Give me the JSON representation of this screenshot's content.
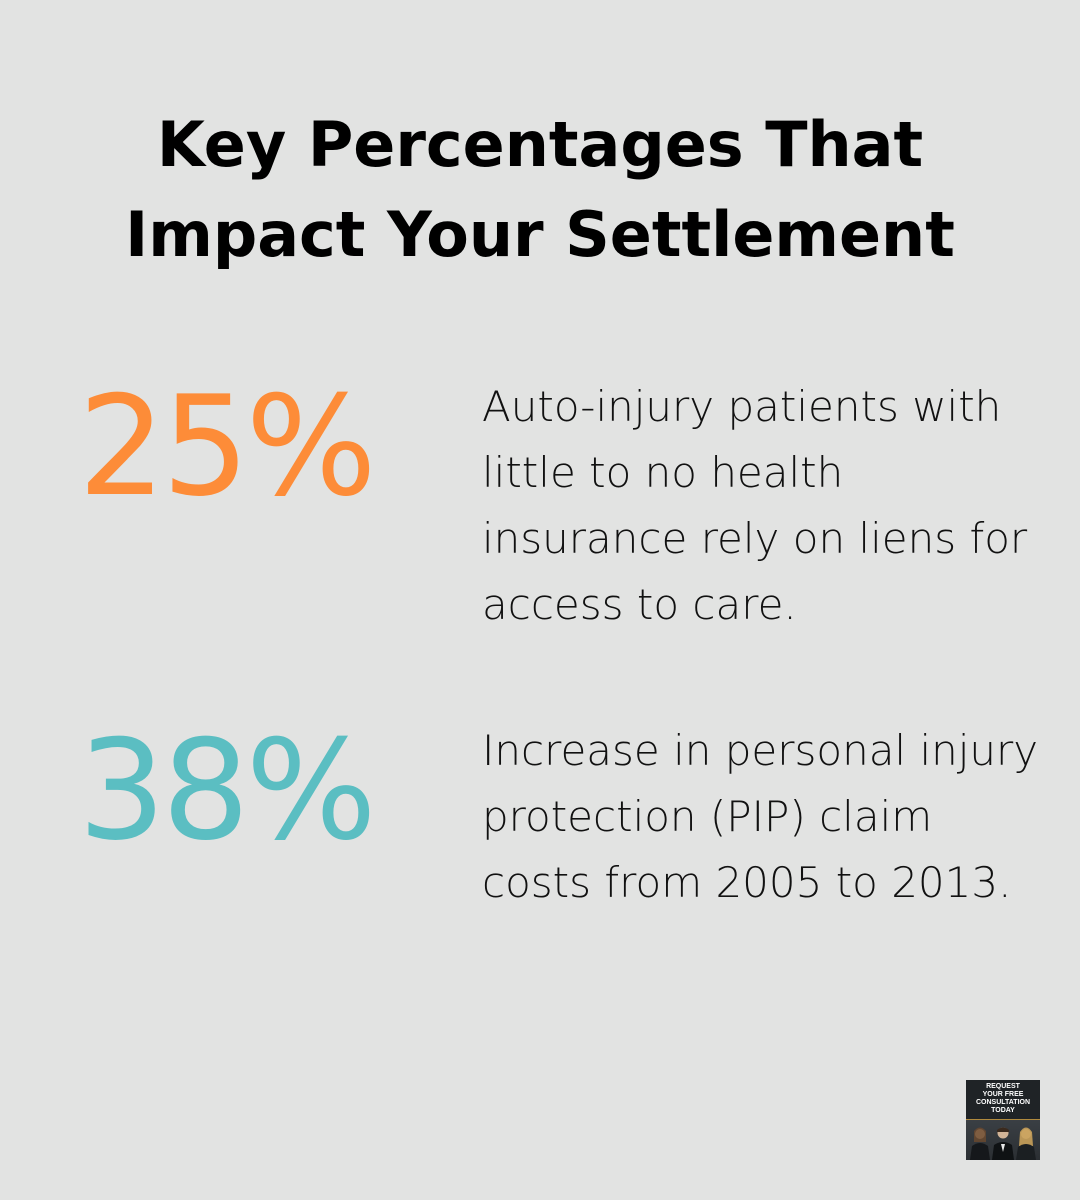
{
  "title": "Key Percentages That Impact Your Settlement",
  "stats": [
    {
      "value": "25%",
      "description": "Auto-injury patients with little to no health insurance rely on liens for access to care.",
      "color": "#fd8c38"
    },
    {
      "value": "38%",
      "description": "Increase in personal injury protection (PIP) claim costs from 2005 to 2013.",
      "color": "#5bbec2"
    }
  ],
  "cta": {
    "text": "REQUEST\nYOUR FREE\nCONSULTATION\nTODAY"
  },
  "colors": {
    "background": "#e2e3e2",
    "text": "#000000"
  }
}
